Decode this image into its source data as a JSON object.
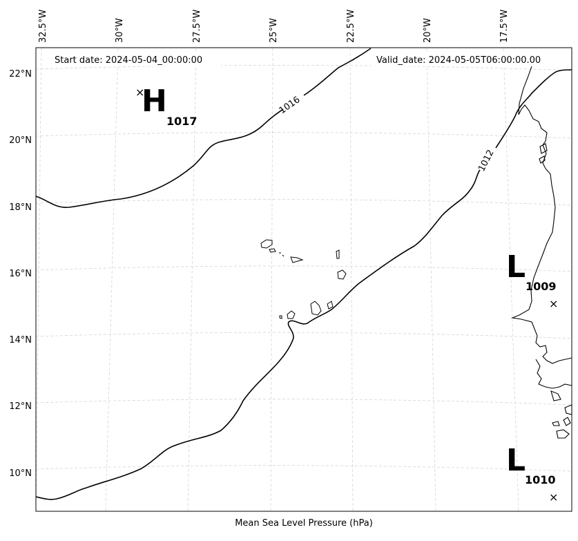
{
  "map": {
    "start_date_label": "Start date: 2024-05-04_00:00:00",
    "valid_date_label": "Valid_date: 2024-05-05T06:00:00.00",
    "caption": "Mean Sea Level Pressure (hPa)",
    "lon_labels": [
      "32.5°W",
      "30°W",
      "27.5°W",
      "25°W",
      "22.5°W",
      "20°W",
      "17.5°W"
    ],
    "lat_labels": [
      "22°N",
      "20°N",
      "18°N",
      "16°N",
      "14°N",
      "12°N",
      "10°N"
    ],
    "isobars": [
      {
        "value": "1016",
        "label": "1016"
      },
      {
        "value": "1012",
        "label": "1012"
      }
    ],
    "pressure_centers": [
      {
        "type": "H",
        "value": "1017",
        "marker": "×"
      },
      {
        "type": "L",
        "value": "1009",
        "marker": "×"
      },
      {
        "type": "L",
        "value": "1010",
        "marker": "×"
      }
    ],
    "colors": {
      "isobar": "#000000",
      "grid": "#cccccc",
      "coast": "#000000"
    }
  }
}
